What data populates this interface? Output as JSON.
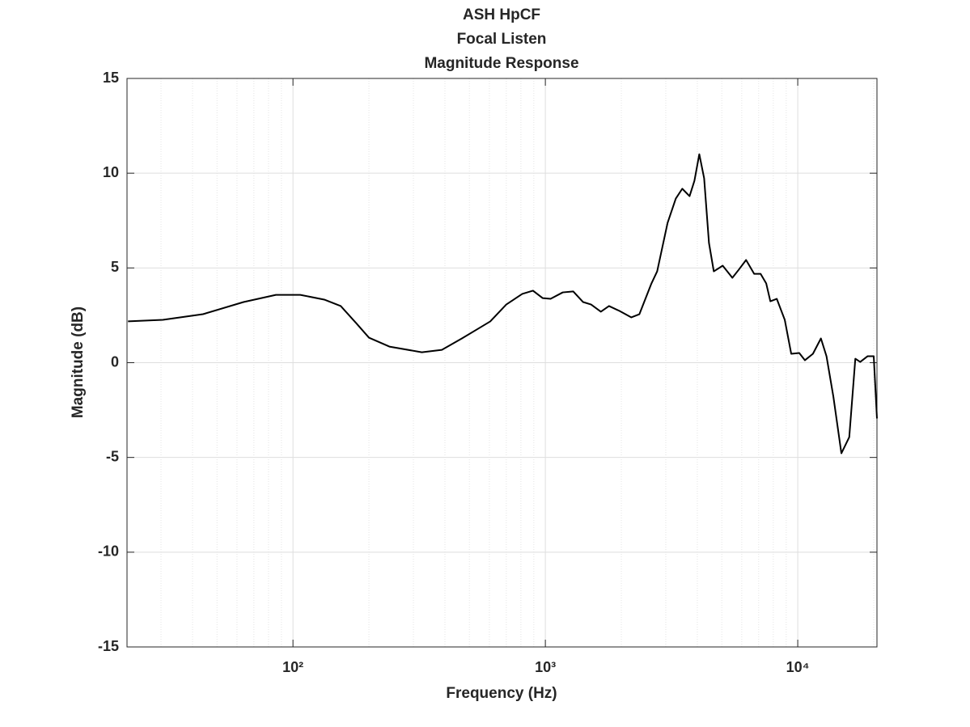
{
  "chart_data": {
    "type": "line",
    "title": [
      "ASH HpCF",
      "Focal Listen",
      "Magnitude Response"
    ],
    "x_label": "Frequency (Hz)",
    "y_label": "Magnitude (dB)",
    "x_scale": "log",
    "grid": true,
    "xlim": [
      22,
      20600
    ],
    "ylim": [
      -15,
      15
    ],
    "xticks": [
      {
        "value": 100,
        "label": "10²"
      },
      {
        "value": 1000,
        "label": "10³"
      },
      {
        "value": 10000,
        "label": "10⁴"
      }
    ],
    "xminorticks": [
      30,
      40,
      50,
      60,
      70,
      80,
      90,
      200,
      300,
      400,
      500,
      600,
      700,
      800,
      900,
      2000,
      3000,
      4000,
      5000,
      6000,
      7000,
      8000,
      9000,
      20000
    ],
    "yticks": [
      -15,
      -10,
      -5,
      0,
      5,
      10,
      15
    ],
    "series": [
      {
        "color": "#000000",
        "x": [
          22.2,
          30.5,
          44,
          63.7,
          85.6,
          106.9,
          133,
          154.6,
          179,
          200,
          241,
          324,
          389,
          467,
          541,
          605,
          700,
          810,
          893,
          975,
          1049,
          1172,
          1290,
          1411,
          1518,
          1659,
          1787,
          1967,
          2191,
          2358,
          2632,
          2773,
          3050,
          3287,
          3487,
          3727,
          3896,
          4073,
          4257,
          4449,
          4649,
          5042,
          5508,
          5841,
          6241,
          6719,
          7125,
          7501,
          7789,
          8258,
          8883,
          9423,
          10137,
          10677,
          11485,
          12354,
          13000,
          13840,
          14890,
          15999,
          16910,
          17680,
          18900,
          20000,
          20600
        ],
        "values": [
          2.18,
          2.26,
          2.56,
          3.2,
          3.58,
          3.58,
          3.33,
          2.99,
          2.05,
          1.32,
          0.85,
          0.55,
          0.68,
          1.28,
          1.79,
          2.18,
          3.07,
          3.63,
          3.8,
          3.41,
          3.37,
          3.71,
          3.76,
          3.2,
          3.07,
          2.69,
          2.99,
          2.73,
          2.39,
          2.56,
          4.18,
          4.82,
          7.38,
          8.66,
          9.18,
          8.79,
          9.6,
          11.0,
          9.73,
          6.32,
          4.82,
          5.12,
          4.48,
          4.91,
          5.42,
          4.69,
          4.69,
          4.18,
          3.24,
          3.37,
          2.26,
          0.47,
          0.51,
          0.13,
          0.47,
          1.28,
          0.34,
          -1.79,
          -4.78,
          -3.93,
          0.21,
          0.04,
          0.34,
          0.34,
          -2.94
        ]
      }
    ]
  }
}
